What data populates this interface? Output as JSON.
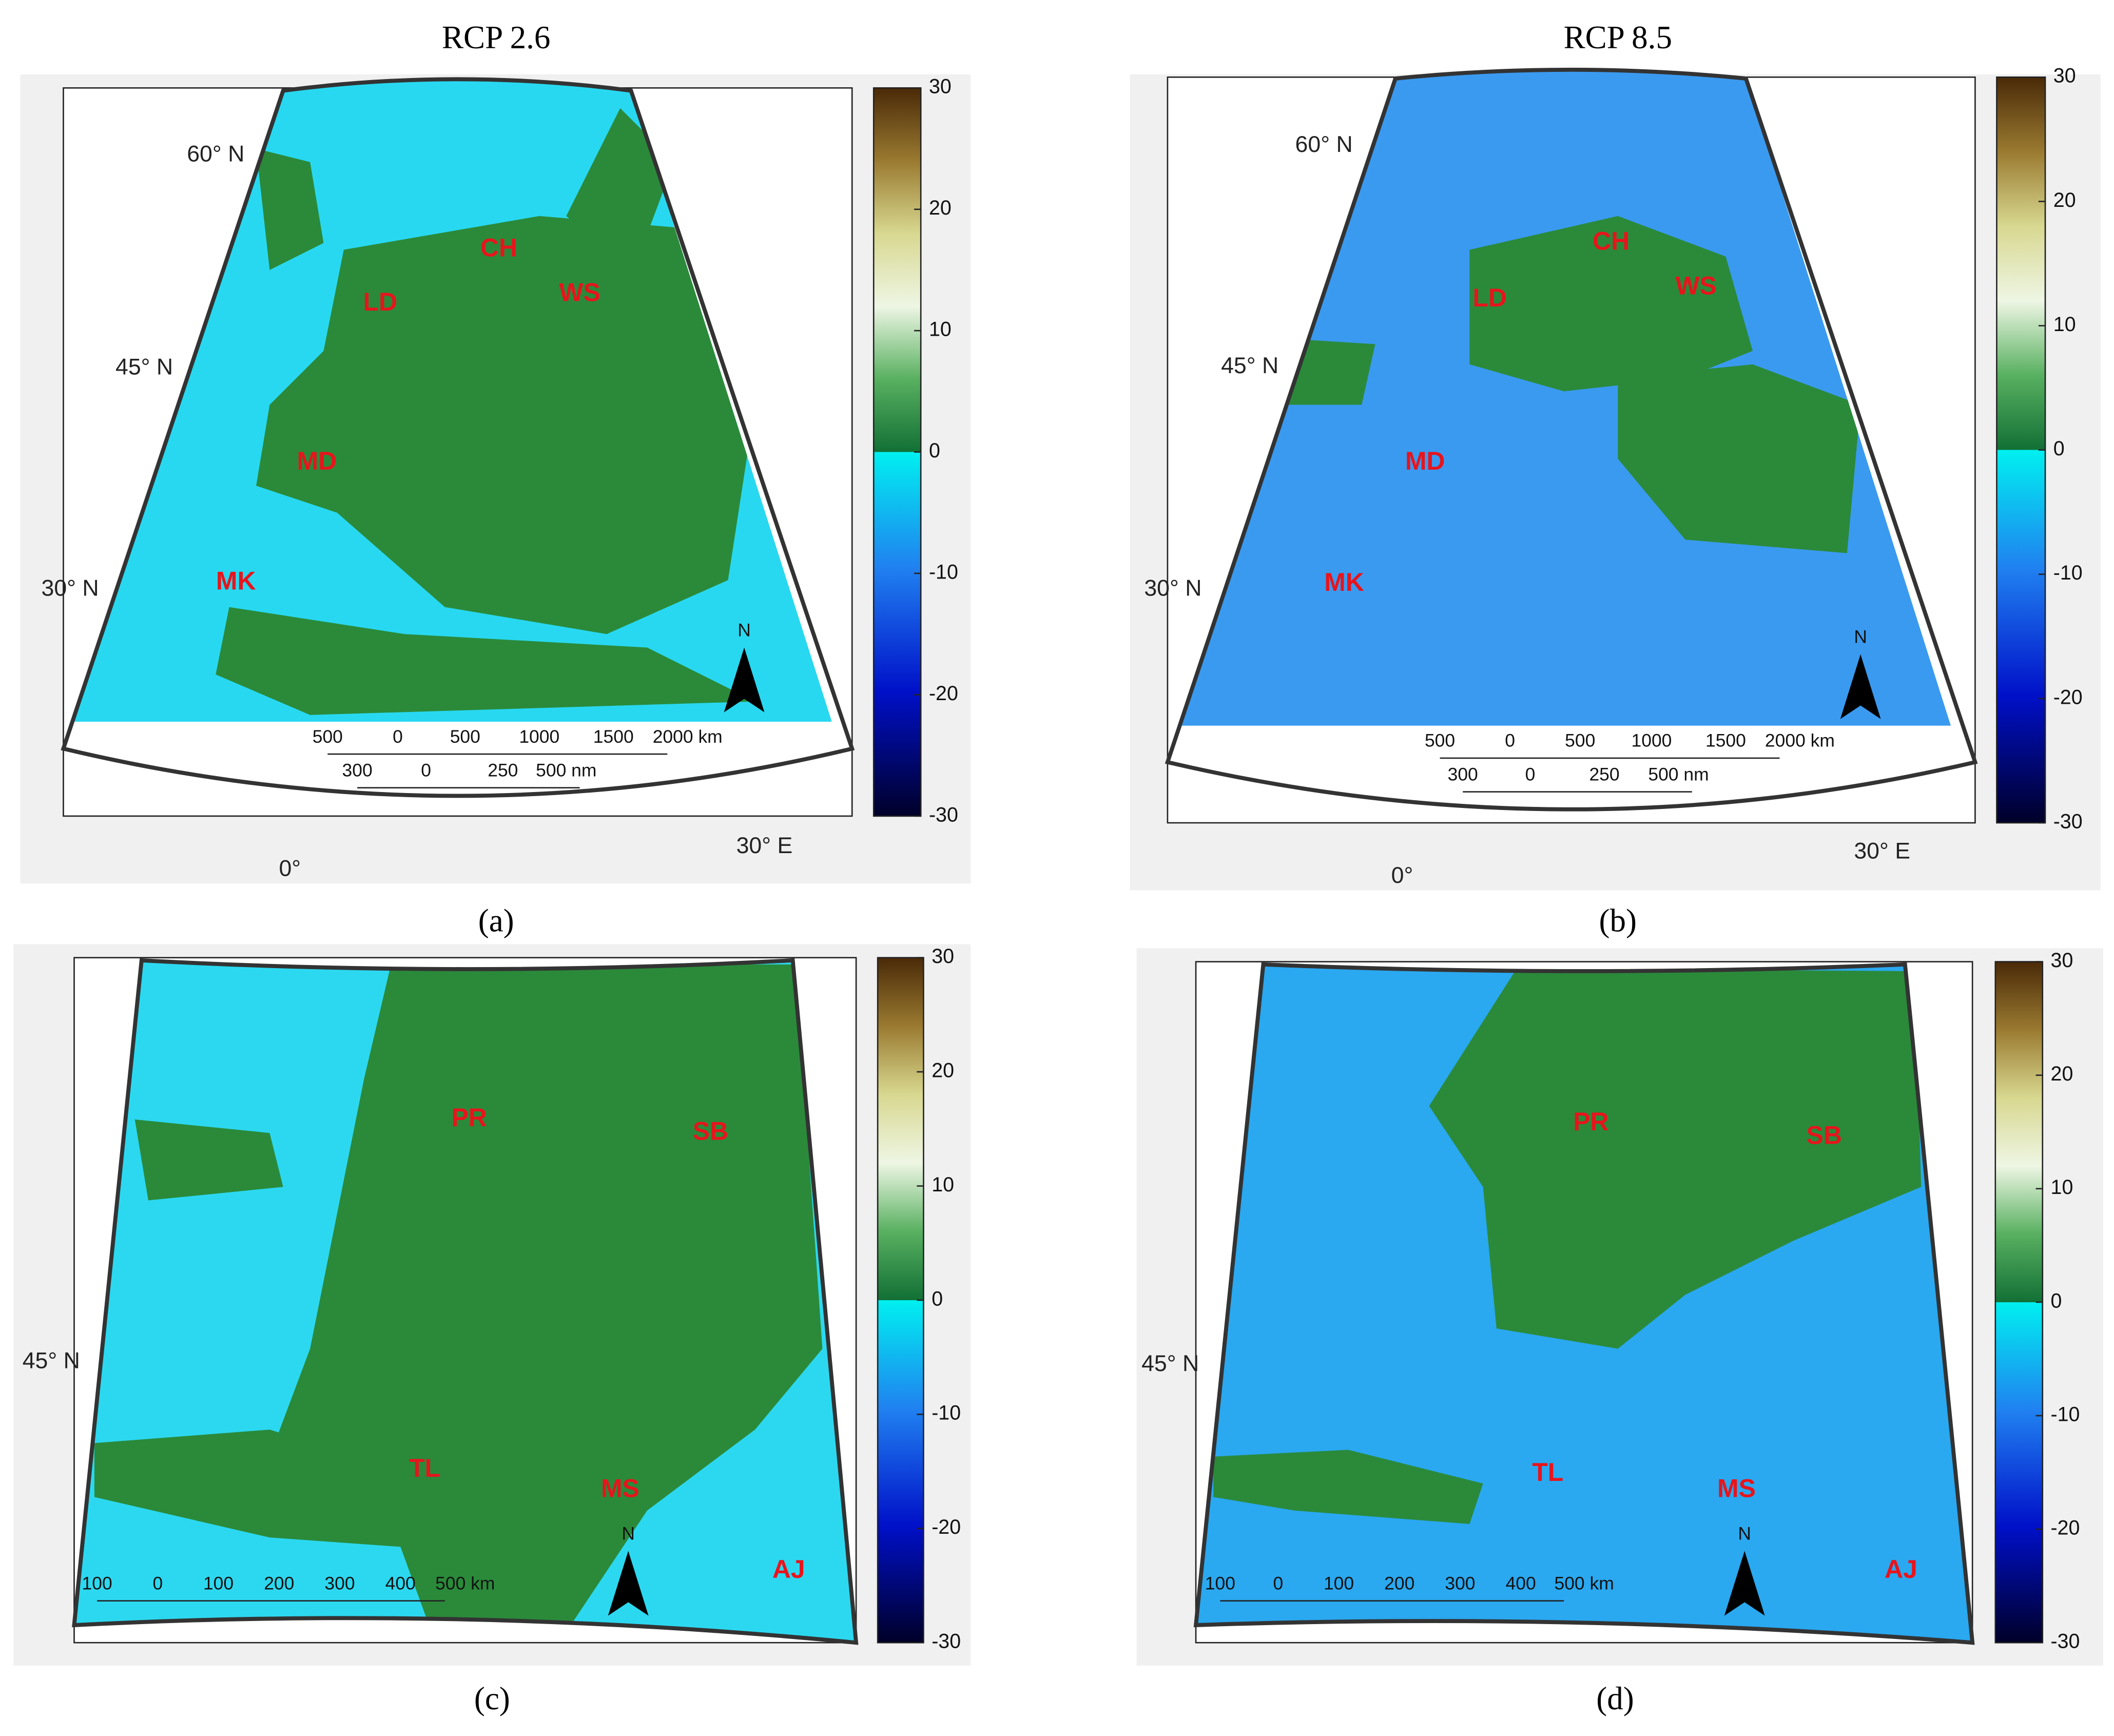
{
  "panels": [
    {
      "title": "RCP 2.6",
      "caption": "(a)",
      "lat_labels": [
        "60° N",
        "45° N",
        "30° N"
      ],
      "lon_labels": [
        "0°",
        "30° E"
      ],
      "regions": [
        "CH",
        "LD",
        "WS",
        "MD",
        "MK"
      ],
      "scale_km": [
        "500",
        "0",
        "500",
        "1000",
        "1500",
        "2000 km"
      ],
      "scale_nm": [
        "300",
        "0",
        "250",
        "500 nm"
      ],
      "north": "N",
      "colorbar_ticks": [
        30,
        20,
        10,
        0,
        -10,
        -20,
        -30
      ]
    },
    {
      "title": "RCP 8.5",
      "caption": "(b)",
      "lat_labels": [
        "60° N",
        "45° N",
        "30° N"
      ],
      "lon_labels": [
        "0°",
        "30° E"
      ],
      "regions": [
        "CH",
        "LD",
        "WS",
        "MD",
        "MK"
      ],
      "scale_km": [
        "500",
        "0",
        "500",
        "1000",
        "1500",
        "2000 km"
      ],
      "scale_nm": [
        "300",
        "0",
        "250",
        "500 nm"
      ],
      "north": "N",
      "colorbar_ticks": [
        30,
        20,
        10,
        0,
        -10,
        -20,
        -30
      ]
    },
    {
      "caption": "(c)",
      "lat_labels": [
        "45° N"
      ],
      "regions": [
        "PR",
        "SB",
        "TL",
        "MS",
        "AJ"
      ],
      "scale_km": [
        "100",
        "0",
        "100",
        "200",
        "300",
        "400",
        "500 km"
      ],
      "north": "N",
      "colorbar_ticks": [
        30,
        20,
        10,
        0,
        -10,
        -20,
        -30
      ]
    },
    {
      "caption": "(d)",
      "lat_labels": [
        "45° N"
      ],
      "regions": [
        "PR",
        "SB",
        "TL",
        "MS",
        "AJ"
      ],
      "scale_km": [
        "100",
        "0",
        "100",
        "200",
        "300",
        "400",
        "500 km"
      ],
      "north": "N",
      "colorbar_ticks": [
        30,
        20,
        10,
        0,
        -10,
        -20,
        -30
      ]
    }
  ]
}
